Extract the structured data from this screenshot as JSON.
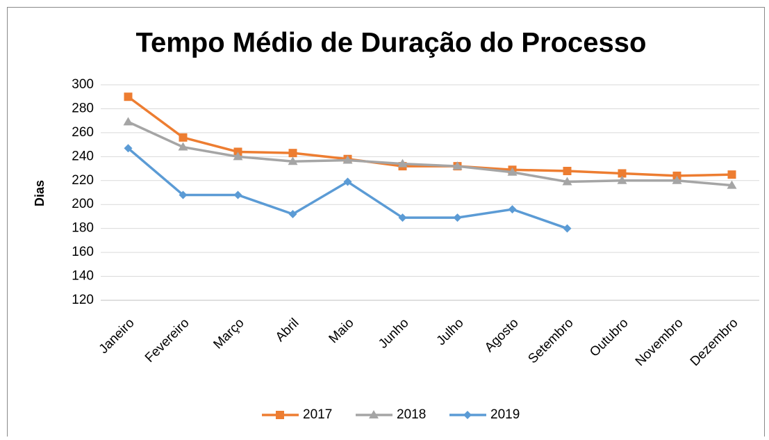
{
  "chart_data": {
    "type": "line",
    "title": "Tempo Médio de Duração do Processo",
    "ylabel": "Dias",
    "categories": [
      "Janeiro",
      "Fevereiro",
      "Março",
      "Abril",
      "Maio",
      "Junho",
      "Julho",
      "Agosto",
      "Setembro",
      "Outubro",
      "Novembro",
      "Dezembro"
    ],
    "series": [
      {
        "name": "2017",
        "color": "#ed7d31",
        "marker": "square",
        "values": [
          290,
          256,
          244,
          243,
          238,
          232,
          232,
          229,
          228,
          226,
          224,
          225
        ]
      },
      {
        "name": "2018",
        "color": "#a5a5a5",
        "marker": "triangle",
        "values": [
          269,
          248,
          240,
          236,
          237,
          234,
          232,
          227,
          219,
          220,
          220,
          216
        ]
      },
      {
        "name": "2019",
        "color": "#5b9bd5",
        "marker": "diamond",
        "values": [
          247,
          208,
          208,
          192,
          219,
          189,
          189,
          196,
          180,
          null,
          null,
          null
        ]
      }
    ],
    "ylim": [
      120,
      300
    ],
    "yticks": [
      120,
      140,
      160,
      180,
      200,
      220,
      240,
      260,
      280,
      300
    ],
    "grid": true,
    "legend": "bottom"
  }
}
